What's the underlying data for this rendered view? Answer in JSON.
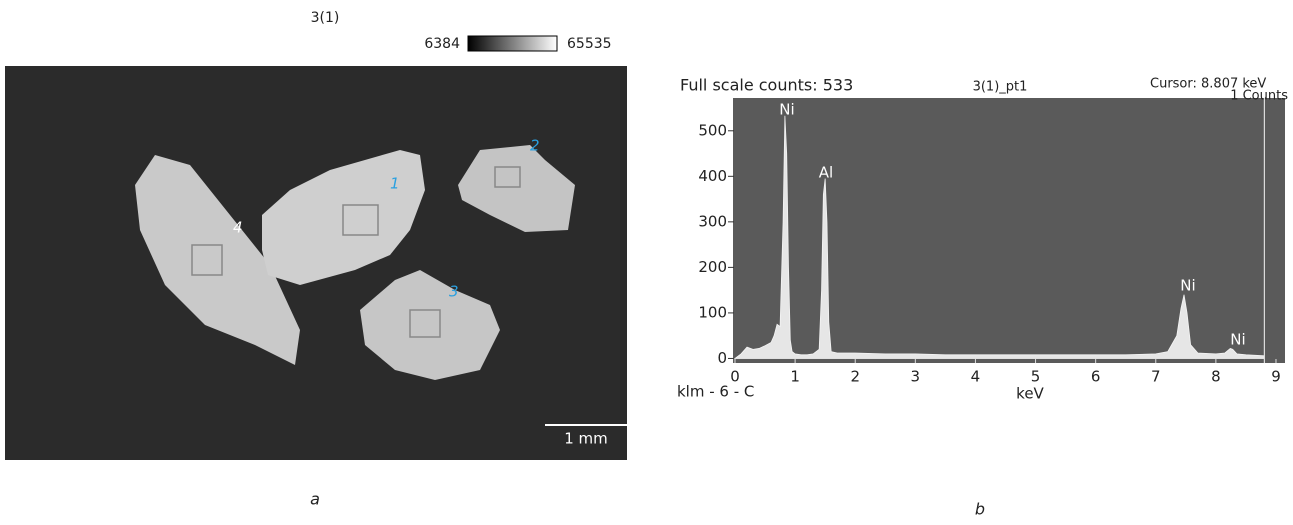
{
  "panel_a": {
    "title": "3(1)",
    "colorbar_min": "6384",
    "colorbar_max": "65535",
    "region_labels": [
      "1",
      "2",
      "3",
      "4"
    ],
    "scale_bar": "1 mm",
    "caption": "a"
  },
  "panel_b_caption": "b",
  "chart_data": {
    "type": "area",
    "title": "3(1)_pt1",
    "subtitle": "Full scale counts: 533",
    "cursor": {
      "value": 8.807,
      "label": "Cursor: 8.807 keV"
    },
    "cursor_counts": "1 Counts",
    "xlabel": "keV",
    "footer_label": "klm - 6 - C",
    "color": "#e6e6e6",
    "background": "#5a5a5a",
    "annotations": [
      "Ni",
      "Al",
      "Ni",
      "Ni"
    ],
    "xlim": [
      0,
      9.15
    ],
    "ylim": [
      -10,
      572
    ],
    "xticks": [
      0,
      1,
      2,
      3,
      4,
      5,
      6,
      7,
      8,
      9
    ],
    "yticks": [
      0,
      100,
      200,
      300,
      400,
      500
    ],
    "x": [
      0,
      0.1,
      0.2,
      0.3,
      0.4,
      0.5,
      0.6,
      0.65,
      0.7,
      0.75,
      0.8,
      0.83,
      0.86,
      0.89,
      0.92,
      0.95,
      1.0,
      1.1,
      1.2,
      1.3,
      1.4,
      1.44,
      1.47,
      1.5,
      1.53,
      1.56,
      1.6,
      1.7,
      2.0,
      2.5,
      3.0,
      3.5,
      4.0,
      4.5,
      5.0,
      5.5,
      6.0,
      6.5,
      7.0,
      7.2,
      7.35,
      7.42,
      7.47,
      7.52,
      7.58,
      7.7,
      8.0,
      8.15,
      8.24,
      8.28,
      8.35,
      8.5,
      8.8
    ],
    "values": [
      0,
      10,
      25,
      20,
      22,
      28,
      35,
      50,
      75,
      70,
      300,
      533,
      450,
      200,
      40,
      15,
      10,
      8,
      8,
      10,
      20,
      150,
      360,
      395,
      300,
      80,
      15,
      12,
      12,
      10,
      10,
      8,
      8,
      8,
      8,
      8,
      8,
      8,
      10,
      15,
      50,
      110,
      140,
      100,
      30,
      12,
      10,
      12,
      22,
      20,
      10,
      8,
      6
    ]
  }
}
